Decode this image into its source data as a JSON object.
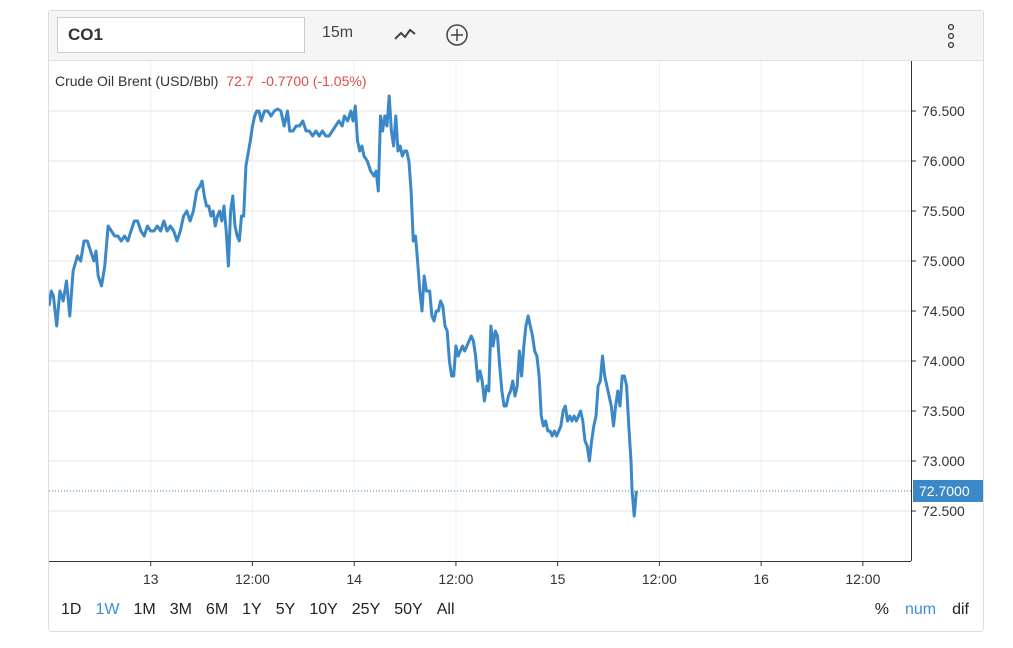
{
  "toolbar": {
    "symbol": "CO1",
    "interval": "15m"
  },
  "legend": {
    "name": "Crude Oil Brent (USD/Bbl)",
    "last": "72.7",
    "change": "-0.7700 (-1.05%)"
  },
  "colors": {
    "line": "#3b88c8",
    "change_down": "#e04a4a",
    "active": "#3b8fd6"
  },
  "price_tag": "72.7000",
  "range_buttons": [
    {
      "label": "1D",
      "active": false
    },
    {
      "label": "1W",
      "active": true
    },
    {
      "label": "1M",
      "active": false
    },
    {
      "label": "3M",
      "active": false
    },
    {
      "label": "6M",
      "active": false
    },
    {
      "label": "1Y",
      "active": false
    },
    {
      "label": "5Y",
      "active": false
    },
    {
      "label": "10Y",
      "active": false
    },
    {
      "label": "25Y",
      "active": false
    },
    {
      "label": "50Y",
      "active": false
    },
    {
      "label": "All",
      "active": false
    }
  ],
  "mode_buttons": [
    {
      "label": "%",
      "active": false
    },
    {
      "label": "num",
      "active": true
    },
    {
      "label": "dif",
      "active": false
    }
  ],
  "chart_data": {
    "type": "line",
    "title": "Crude Oil Brent (USD/Bbl)",
    "ylim": [
      72.0,
      77.0
    ],
    "y_ticks": [
      72.5,
      73.0,
      73.5,
      74.0,
      74.5,
      75.0,
      75.5,
      76.0,
      76.5
    ],
    "y_tick_labels": [
      "72.500",
      "73.000",
      "73.500",
      "74.000",
      "74.500",
      "75.000",
      "75.500",
      "76.000",
      "76.500"
    ],
    "x_ticks": [
      {
        "label": "13",
        "t": 0.465
      },
      {
        "label": "12:00",
        "t": 0.93
      },
      {
        "label": "14",
        "t": 1.395
      },
      {
        "label": "12:00",
        "t": 1.86
      },
      {
        "label": "15",
        "t": 2.325
      },
      {
        "label": "12:00",
        "t": 2.79
      },
      {
        "label": "16",
        "t": 3.255
      },
      {
        "label": "12:00",
        "t": 3.72
      }
    ],
    "xlim": [
      0,
      3.94
    ],
    "grid": true,
    "last_value": 72.7,
    "series": [
      {
        "values": [
          [
            0.0,
            74.55
          ],
          [
            0.01,
            74.7
          ],
          [
            0.02,
            74.65
          ],
          [
            0.035,
            74.35
          ],
          [
            0.05,
            74.7
          ],
          [
            0.065,
            74.6
          ],
          [
            0.08,
            74.8
          ],
          [
            0.095,
            74.45
          ],
          [
            0.11,
            74.9
          ],
          [
            0.13,
            75.05
          ],
          [
            0.145,
            75.0
          ],
          [
            0.16,
            75.2
          ],
          [
            0.175,
            75.2
          ],
          [
            0.19,
            75.1
          ],
          [
            0.205,
            75.0
          ],
          [
            0.215,
            75.1
          ],
          [
            0.225,
            74.85
          ],
          [
            0.24,
            74.75
          ],
          [
            0.255,
            74.95
          ],
          [
            0.27,
            75.35
          ],
          [
            0.285,
            75.3
          ],
          [
            0.3,
            75.25
          ],
          [
            0.315,
            75.25
          ],
          [
            0.33,
            75.2
          ],
          [
            0.345,
            75.25
          ],
          [
            0.36,
            75.2
          ],
          [
            0.375,
            75.3
          ],
          [
            0.39,
            75.4
          ],
          [
            0.405,
            75.4
          ],
          [
            0.42,
            75.3
          ],
          [
            0.435,
            75.25
          ],
          [
            0.45,
            75.35
          ],
          [
            0.465,
            75.3
          ],
          [
            0.48,
            75.3
          ],
          [
            0.495,
            75.35
          ],
          [
            0.51,
            75.3
          ],
          [
            0.525,
            75.4
          ],
          [
            0.54,
            75.3
          ],
          [
            0.555,
            75.35
          ],
          [
            0.57,
            75.3
          ],
          [
            0.585,
            75.2
          ],
          [
            0.6,
            75.3
          ],
          [
            0.615,
            75.45
          ],
          [
            0.63,
            75.5
          ],
          [
            0.645,
            75.4
          ],
          [
            0.66,
            75.5
          ],
          [
            0.675,
            75.7
          ],
          [
            0.69,
            75.75
          ],
          [
            0.7,
            75.8
          ],
          [
            0.71,
            75.65
          ],
          [
            0.72,
            75.55
          ],
          [
            0.73,
            75.55
          ],
          [
            0.74,
            75.45
          ],
          [
            0.75,
            75.5
          ],
          [
            0.76,
            75.35
          ],
          [
            0.77,
            75.45
          ],
          [
            0.78,
            75.5
          ],
          [
            0.79,
            75.4
          ],
          [
            0.8,
            75.55
          ],
          [
            0.81,
            75.3
          ],
          [
            0.82,
            74.95
          ],
          [
            0.83,
            75.5
          ],
          [
            0.84,
            75.65
          ],
          [
            0.85,
            75.35
          ],
          [
            0.86,
            75.25
          ],
          [
            0.87,
            75.2
          ],
          [
            0.88,
            75.45
          ],
          [
            0.89,
            75.45
          ],
          [
            0.9,
            75.95
          ],
          [
            0.92,
            76.2
          ],
          [
            0.93,
            76.35
          ],
          [
            0.94,
            76.45
          ],
          [
            0.95,
            76.5
          ],
          [
            0.96,
            76.5
          ],
          [
            0.97,
            76.4
          ],
          [
            0.985,
            76.5
          ],
          [
            1.0,
            76.5
          ],
          [
            1.015,
            76.45
          ],
          [
            1.03,
            76.5
          ],
          [
            1.045,
            76.52
          ],
          [
            1.06,
            76.5
          ],
          [
            1.075,
            76.35
          ],
          [
            1.09,
            76.5
          ],
          [
            1.1,
            76.3
          ],
          [
            1.115,
            76.3
          ],
          [
            1.13,
            76.35
          ],
          [
            1.145,
            76.35
          ],
          [
            1.16,
            76.4
          ],
          [
            1.175,
            76.3
          ],
          [
            1.19,
            76.3
          ],
          [
            1.205,
            76.25
          ],
          [
            1.22,
            76.3
          ],
          [
            1.235,
            76.25
          ],
          [
            1.25,
            76.3
          ],
          [
            1.265,
            76.25
          ],
          [
            1.28,
            76.25
          ],
          [
            1.295,
            76.3
          ],
          [
            1.31,
            76.35
          ],
          [
            1.325,
            76.4
          ],
          [
            1.34,
            76.35
          ],
          [
            1.35,
            76.45
          ],
          [
            1.365,
            76.4
          ],
          [
            1.38,
            76.5
          ],
          [
            1.39,
            76.4
          ],
          [
            1.4,
            76.55
          ],
          [
            1.41,
            76.2
          ],
          [
            1.42,
            76.1
          ],
          [
            1.43,
            76.15
          ],
          [
            1.44,
            76.05
          ],
          [
            1.455,
            76.0
          ],
          [
            1.47,
            75.9
          ],
          [
            1.485,
            75.85
          ],
          [
            1.495,
            75.9
          ],
          [
            1.505,
            75.7
          ],
          [
            1.515,
            76.45
          ],
          [
            1.525,
            76.3
          ],
          [
            1.535,
            76.45
          ],
          [
            1.545,
            76.35
          ],
          [
            1.555,
            76.65
          ],
          [
            1.565,
            76.3
          ],
          [
            1.575,
            76.15
          ],
          [
            1.585,
            76.45
          ],
          [
            1.595,
            76.1
          ],
          [
            1.605,
            76.15
          ],
          [
            1.615,
            76.05
          ],
          [
            1.625,
            76.1
          ],
          [
            1.635,
            76.1
          ],
          [
            1.645,
            76.0
          ],
          [
            1.655,
            75.7
          ],
          [
            1.665,
            75.2
          ],
          [
            1.675,
            75.25
          ],
          [
            1.685,
            75.0
          ],
          [
            1.695,
            74.7
          ],
          [
            1.705,
            74.5
          ],
          [
            1.715,
            74.85
          ],
          [
            1.725,
            74.7
          ],
          [
            1.74,
            74.7
          ],
          [
            1.75,
            74.45
          ],
          [
            1.76,
            74.4
          ],
          [
            1.77,
            74.5
          ],
          [
            1.78,
            74.5
          ],
          [
            1.79,
            74.6
          ],
          [
            1.8,
            74.55
          ],
          [
            1.81,
            74.35
          ],
          [
            1.82,
            74.3
          ],
          [
            1.83,
            74.0
          ],
          [
            1.84,
            73.85
          ],
          [
            1.85,
            73.85
          ],
          [
            1.86,
            74.15
          ],
          [
            1.87,
            74.05
          ],
          [
            1.88,
            74.1
          ],
          [
            1.89,
            74.15
          ],
          [
            1.9,
            74.1
          ],
          [
            1.91,
            74.15
          ],
          [
            1.92,
            74.2
          ],
          [
            1.93,
            74.25
          ],
          [
            1.94,
            74.2
          ],
          [
            1.95,
            74.05
          ],
          [
            1.96,
            73.8
          ],
          [
            1.97,
            73.9
          ],
          [
            1.98,
            73.8
          ],
          [
            1.99,
            73.6
          ],
          [
            2.0,
            73.75
          ],
          [
            2.01,
            73.7
          ],
          [
            2.02,
            74.35
          ],
          [
            2.03,
            74.15
          ],
          [
            2.04,
            74.3
          ],
          [
            2.05,
            74.25
          ],
          [
            2.06,
            73.95
          ],
          [
            2.07,
            73.7
          ],
          [
            2.08,
            73.55
          ],
          [
            2.09,
            73.55
          ],
          [
            2.1,
            73.65
          ],
          [
            2.11,
            73.7
          ],
          [
            2.12,
            73.8
          ],
          [
            2.13,
            73.65
          ],
          [
            2.14,
            73.75
          ],
          [
            2.15,
            74.1
          ],
          [
            2.16,
            73.85
          ],
          [
            2.17,
            74.15
          ],
          [
            2.18,
            74.35
          ],
          [
            2.19,
            74.45
          ],
          [
            2.2,
            74.35
          ],
          [
            2.21,
            74.25
          ],
          [
            2.22,
            74.1
          ],
          [
            2.23,
            74.05
          ],
          [
            2.24,
            73.85
          ],
          [
            2.25,
            73.45
          ],
          [
            2.26,
            73.35
          ],
          [
            2.27,
            73.4
          ],
          [
            2.28,
            73.3
          ],
          [
            2.29,
            73.3
          ],
          [
            2.3,
            73.25
          ],
          [
            2.31,
            73.3
          ],
          [
            2.32,
            73.25
          ],
          [
            2.33,
            73.3
          ],
          [
            2.34,
            73.35
          ],
          [
            2.35,
            73.5
          ],
          [
            2.36,
            73.55
          ],
          [
            2.37,
            73.4
          ],
          [
            2.38,
            73.45
          ],
          [
            2.39,
            73.4
          ],
          [
            2.4,
            73.45
          ],
          [
            2.41,
            73.4
          ],
          [
            2.42,
            73.45
          ],
          [
            2.43,
            73.5
          ],
          [
            2.44,
            73.4
          ],
          [
            2.45,
            73.2
          ],
          [
            2.46,
            73.15
          ],
          [
            2.47,
            73.0
          ],
          [
            2.48,
            73.2
          ],
          [
            2.49,
            73.35
          ],
          [
            2.5,
            73.45
          ],
          [
            2.51,
            73.75
          ],
          [
            2.52,
            73.8
          ],
          [
            2.53,
            74.05
          ],
          [
            2.54,
            73.85
          ],
          [
            2.55,
            73.75
          ],
          [
            2.56,
            73.65
          ],
          [
            2.57,
            73.55
          ],
          [
            2.58,
            73.35
          ],
          [
            2.59,
            73.55
          ],
          [
            2.6,
            73.7
          ],
          [
            2.61,
            73.55
          ],
          [
            2.62,
            73.85
          ],
          [
            2.63,
            73.85
          ],
          [
            2.64,
            73.75
          ],
          [
            2.65,
            73.35
          ],
          [
            2.66,
            73.0
          ],
          [
            2.665,
            72.7
          ],
          [
            2.675,
            72.45
          ],
          [
            2.685,
            72.7
          ]
        ]
      }
    ]
  }
}
